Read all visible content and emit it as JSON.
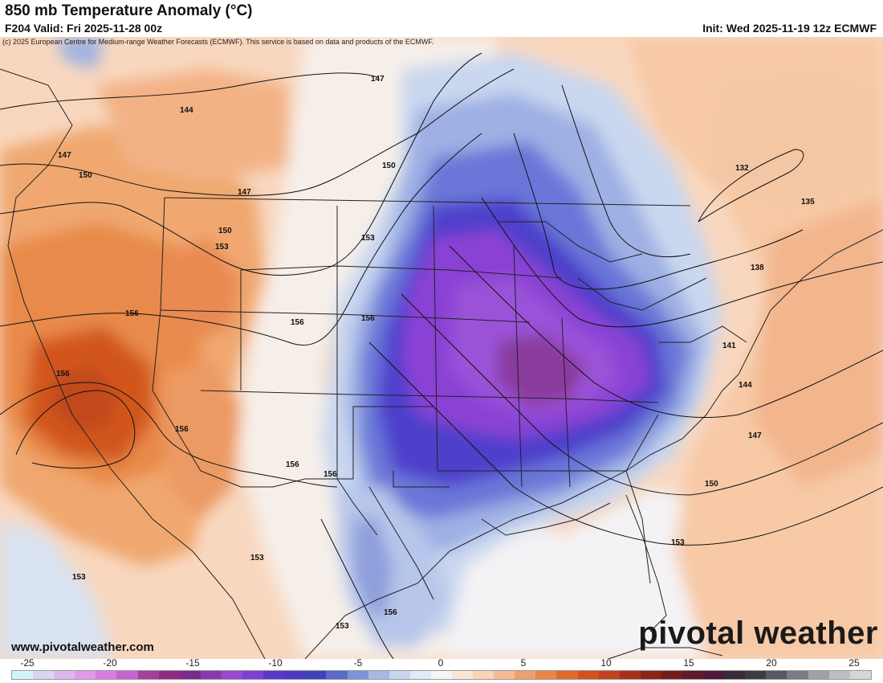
{
  "header": {
    "title": "850 mb Temperature Anomaly (°C)",
    "valid": "F204 Valid: Fri 2025-11-28 00z",
    "init": "Init: Wed 2025-11-19 12z ECMWF"
  },
  "copyright": "(c) 2025 European Centre for Medium-range Weather Forecasts (ECMWF). This service is based on data and products of the ECMWF.",
  "footer": {
    "website": "www.pivotalweather.com",
    "brand": "pivotal weather"
  },
  "colorbar": {
    "ticks": [
      "-25",
      "-20",
      "-15",
      "-10",
      "-5",
      "0",
      "5",
      "10",
      "15",
      "20",
      "25"
    ],
    "colors": [
      "#d2f4fb",
      "#d9d6f2",
      "#dcb8ee",
      "#e09ae9",
      "#d87ede",
      "#c663cf",
      "#a3409a",
      "#8e2a80",
      "#7a2a8a",
      "#8a3ab0",
      "#9a49d2",
      "#7d3fd6",
      "#5a37cf",
      "#4a3ac4",
      "#3e44b8",
      "#5a6ac8",
      "#7f92d6",
      "#a7b8e3",
      "#c7d5ee",
      "#e2eaf6",
      "#f5f5f5",
      "#fbe7d8",
      "#f8d3b8",
      "#f4bb94",
      "#f0a06e",
      "#e88448",
      "#df6a2a",
      "#d2521a",
      "#c2401a",
      "#a8301a",
      "#8c2418",
      "#741c1c",
      "#601a2a",
      "#4e1a38",
      "#3a2a3a",
      "#3c3c40",
      "#565a60",
      "#7a7e84",
      "#9ea2a6",
      "#bcc0c2",
      "#d6d6d6"
    ]
  },
  "contours": [
    {
      "label": "144"
    },
    {
      "label": "147"
    },
    {
      "label": "150"
    },
    {
      "label": "153"
    },
    {
      "label": "156"
    },
    {
      "label": "132"
    },
    {
      "label": "135"
    },
    {
      "label": "138"
    },
    {
      "label": "141"
    }
  ]
}
